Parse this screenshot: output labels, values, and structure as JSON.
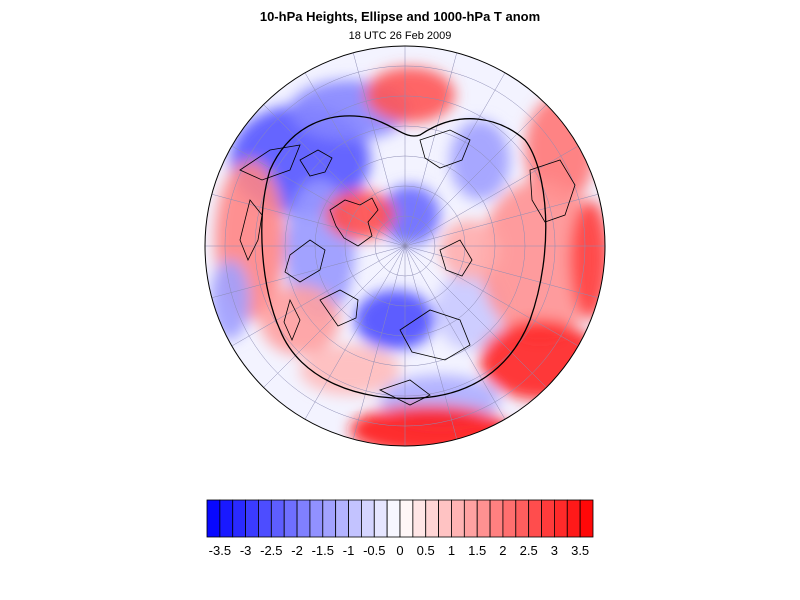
{
  "figure": {
    "title": "10-hPa Heights, Ellipse and 1000-hPa T anom",
    "subtitle": "18 UTC 26 Feb 2009"
  },
  "colors": {
    "negative_max": "#0000ff",
    "positive_max": "#ff0000",
    "neutral": "#ffffff",
    "coastline": "#000000",
    "graticule": "#8c8cb4",
    "ellipse": "#000000"
  },
  "map": {
    "projection": "polar stereographic (north pole)",
    "graticule": true,
    "features": [
      "coastlines",
      "graticule",
      "10-hPa vortex ellipse contour"
    ]
  },
  "colorbar": {
    "levels": [
      -3.75,
      -3.5,
      -3.25,
      -3,
      -2.75,
      -2.5,
      -2.25,
      -2,
      -1.75,
      -1.5,
      -1.25,
      -1,
      -0.75,
      -0.5,
      -0.25,
      0,
      0.25,
      0.5,
      0.75,
      1,
      1.25,
      1.5,
      1.75,
      2,
      2.25,
      2.5,
      2.75,
      3,
      3.25,
      3.5,
      3.75
    ],
    "tick_labels": [
      "-3.5",
      "-3",
      "-2.5",
      "-2",
      "-1.5",
      "-1",
      "-0.5",
      "0",
      "0.5",
      "1",
      "1.5",
      "2",
      "2.5",
      "3",
      "3.5"
    ]
  }
}
